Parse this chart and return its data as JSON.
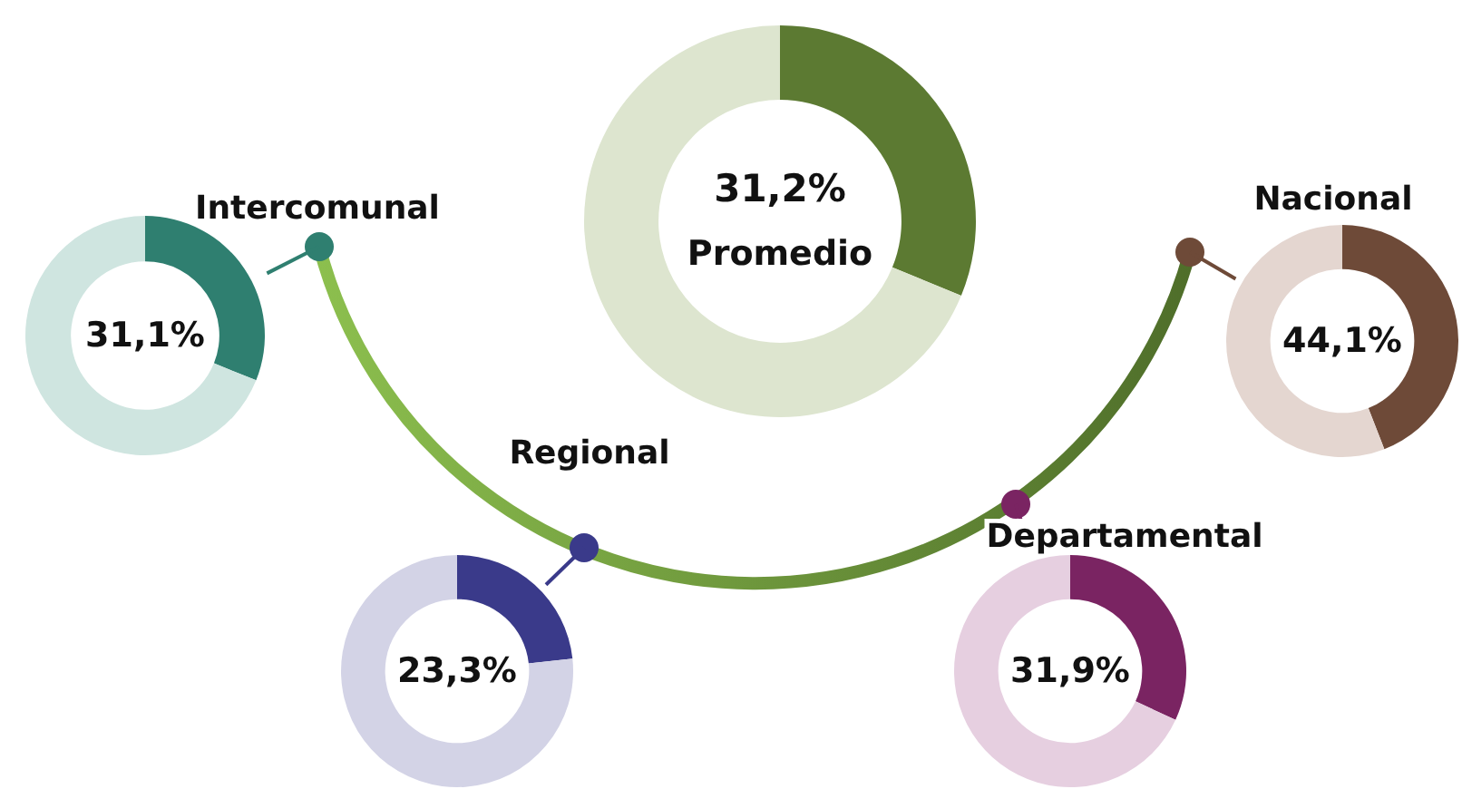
{
  "chart_data": [
    {
      "type": "donut",
      "categories": [
        "Intercomunal",
        null
      ],
      "values": [
        31.1,
        68.9
      ],
      "value_labels": [
        "31,1%",
        null
      ],
      "colors": [
        "#2f7f70",
        "#cfe5e0"
      ]
    },
    {
      "type": "donut",
      "categories": [
        "Regional",
        null
      ],
      "values": [
        23.3,
        76.7
      ],
      "value_labels": [
        "23,3%",
        null
      ],
      "colors": [
        "#3a3a8a",
        "#d3d3e6"
      ]
    },
    {
      "type": "donut",
      "categories": [
        "Departamental",
        null
      ],
      "values": [
        31.9,
        68.1
      ],
      "value_labels": [
        "31,9%",
        null
      ],
      "colors": [
        "#7a2462",
        "#e6cfe0"
      ]
    },
    {
      "type": "donut",
      "categories": [
        "Nacional",
        null
      ],
      "values": [
        44.1,
        55.9
      ],
      "value_labels": [
        "44,1%",
        null
      ],
      "colors": [
        "#6e4a38",
        "#e4d6d0"
      ]
    },
    {
      "type": "donut",
      "categories": [
        "Promedio",
        null
      ],
      "values": [
        31.2,
        68.8
      ],
      "value_labels": [
        "31,2%",
        null
      ],
      "colors": [
        "#5c7a32",
        "#dde5cf"
      ]
    }
  ]
}
